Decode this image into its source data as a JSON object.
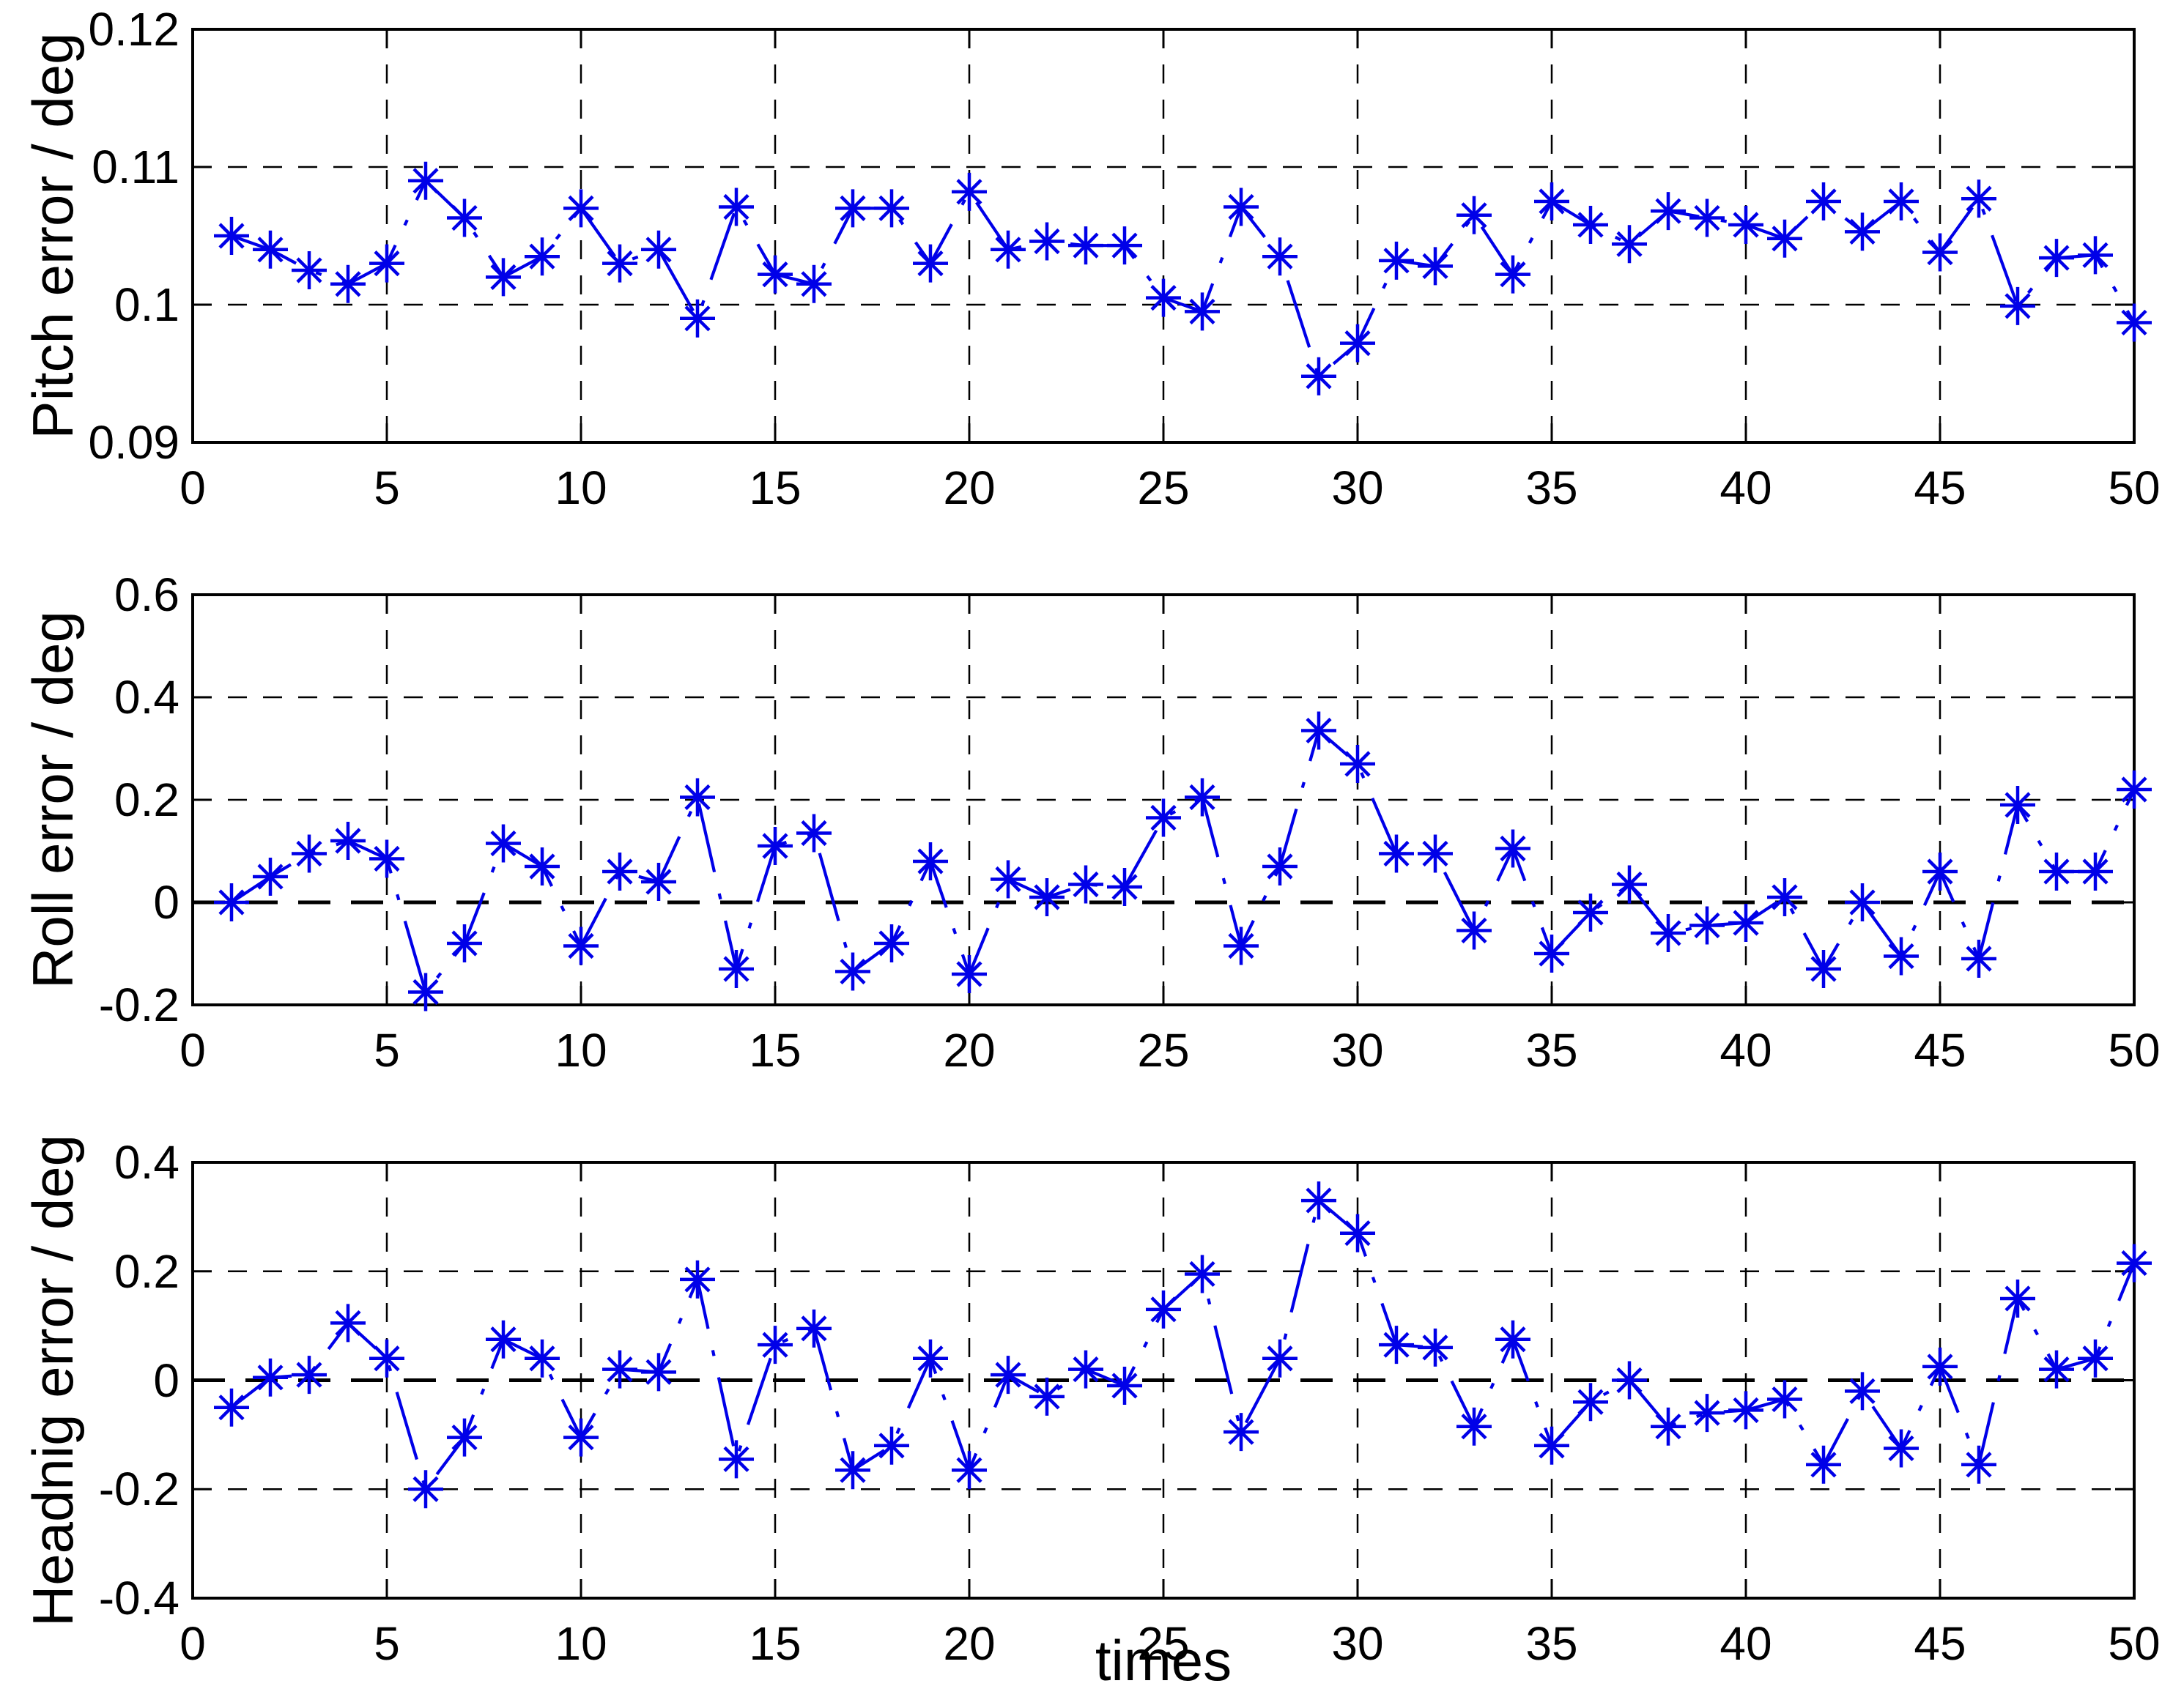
{
  "figure": {
    "xlabel": "times",
    "x_tick_labels": [
      "0",
      "5",
      "10",
      "15",
      "20",
      "25",
      "30",
      "35",
      "40",
      "45",
      "50"
    ],
    "colors": {
      "series": "#0000E8",
      "axis": "#000000",
      "background": "#FFFFFF"
    }
  },
  "chart_data": [
    {
      "type": "line",
      "series_name": "pitch-error",
      "ylabel": "Pitch error / deg",
      "marker": "asterisk",
      "line_style": "dash-dot",
      "grid": true,
      "xlim": [
        0,
        50
      ],
      "ylim": [
        0.09,
        0.12
      ],
      "y_ticks": [
        0.12,
        0.11,
        0.1,
        0.09
      ],
      "y_tick_labels": [
        "0.12",
        "0.11",
        "0.1",
        "0.09"
      ],
      "grid_y": [
        0.11,
        0.1
      ],
      "zero_line": false,
      "x": [
        1,
        2,
        3,
        4,
        5,
        6,
        7,
        8,
        9,
        10,
        11,
        12,
        13,
        14,
        15,
        16,
        17,
        18,
        19,
        20,
        21,
        22,
        23,
        24,
        25,
        26,
        27,
        28,
        29,
        30,
        31,
        32,
        33,
        34,
        35,
        36,
        37,
        38,
        39,
        40,
        41,
        42,
        43,
        44,
        45,
        46,
        47,
        48,
        49,
        50
      ],
      "values": [
        0.105,
        0.104,
        0.1025,
        0.1015,
        0.103,
        0.109,
        0.1063,
        0.102,
        0.1035,
        0.107,
        0.103,
        0.104,
        0.099,
        0.1071,
        0.1022,
        0.1015,
        0.107,
        0.107,
        0.103,
        0.1082,
        0.104,
        0.1046,
        0.1043,
        0.1043,
        0.1005,
        0.0995,
        0.1071,
        0.1035,
        0.0948,
        0.0972,
        0.1032,
        0.1028,
        0.1065,
        0.1022,
        0.1075,
        0.1058,
        0.1044,
        0.1068,
        0.1063,
        0.1058,
        0.1048,
        0.1075,
        0.1053,
        0.1075,
        0.1038,
        0.1077,
        0.0999,
        0.1034,
        0.1036,
        0.0987
      ]
    },
    {
      "type": "line",
      "series_name": "roll-error",
      "ylabel": "Roll error / deg",
      "marker": "asterisk",
      "line_style": "dash-dot",
      "grid": true,
      "xlim": [
        0,
        50
      ],
      "ylim": [
        -0.2,
        0.6
      ],
      "y_ticks": [
        0.6,
        0.4,
        0.2,
        0,
        -0.2
      ],
      "y_tick_labels": [
        "0.6",
        "0.4",
        "0.2",
        "0",
        "-0.2"
      ],
      "grid_y": [
        0.4,
        0.2,
        0
      ],
      "zero_line": true,
      "x": [
        1,
        2,
        3,
        4,
        5,
        6,
        7,
        8,
        9,
        10,
        11,
        12,
        13,
        14,
        15,
        16,
        17,
        18,
        19,
        20,
        21,
        22,
        23,
        24,
        25,
        26,
        27,
        28,
        29,
        30,
        31,
        32,
        33,
        34,
        35,
        36,
        37,
        38,
        39,
        40,
        41,
        42,
        43,
        44,
        45,
        46,
        47,
        48,
        49,
        50
      ],
      "values": [
        0.0,
        0.05,
        0.095,
        0.12,
        0.085,
        -0.175,
        -0.08,
        0.115,
        0.07,
        -0.085,
        0.06,
        0.04,
        0.205,
        -0.13,
        0.11,
        0.135,
        -0.135,
        -0.08,
        0.08,
        -0.14,
        0.045,
        0.01,
        0.035,
        0.03,
        0.165,
        0.205,
        -0.085,
        0.07,
        0.335,
        0.27,
        0.095,
        0.095,
        -0.055,
        0.105,
        -0.1,
        -0.02,
        0.035,
        -0.06,
        -0.045,
        -0.04,
        0.01,
        -0.13,
        0.0,
        -0.105,
        0.06,
        -0.11,
        0.19,
        0.06,
        0.06,
        0.22
      ]
    },
    {
      "type": "line",
      "series_name": "heading-error",
      "ylabel": "Headnig error / deg",
      "marker": "asterisk",
      "line_style": "dash-dot",
      "grid": true,
      "xlim": [
        0,
        50
      ],
      "ylim": [
        -0.4,
        0.4
      ],
      "y_ticks": [
        0.4,
        0.2,
        0,
        -0.2,
        -0.4
      ],
      "y_tick_labels": [
        "0.4",
        "0.2",
        "0",
        "-0.2",
        "-0.4"
      ],
      "grid_y": [
        0.2,
        0,
        -0.2
      ],
      "zero_line": true,
      "x": [
        1,
        2,
        3,
        4,
        5,
        6,
        7,
        8,
        9,
        10,
        11,
        12,
        13,
        14,
        15,
        16,
        17,
        18,
        19,
        20,
        21,
        22,
        23,
        24,
        25,
        26,
        27,
        28,
        29,
        30,
        31,
        32,
        33,
        34,
        35,
        36,
        37,
        38,
        39,
        40,
        41,
        42,
        43,
        44,
        45,
        46,
        47,
        48,
        49,
        50
      ],
      "values": [
        -0.05,
        0.005,
        0.01,
        0.105,
        0.04,
        -0.2,
        -0.105,
        0.075,
        0.04,
        -0.105,
        0.02,
        0.015,
        0.185,
        -0.145,
        0.065,
        0.095,
        -0.165,
        -0.12,
        0.04,
        -0.165,
        0.01,
        -0.03,
        0.02,
        -0.01,
        0.13,
        0.195,
        -0.095,
        0.04,
        0.33,
        0.27,
        0.065,
        0.06,
        -0.085,
        0.075,
        -0.12,
        -0.04,
        0.0,
        -0.085,
        -0.06,
        -0.055,
        -0.035,
        -0.155,
        -0.02,
        -0.125,
        0.025,
        -0.155,
        0.15,
        0.02,
        0.04,
        0.215
      ]
    }
  ]
}
